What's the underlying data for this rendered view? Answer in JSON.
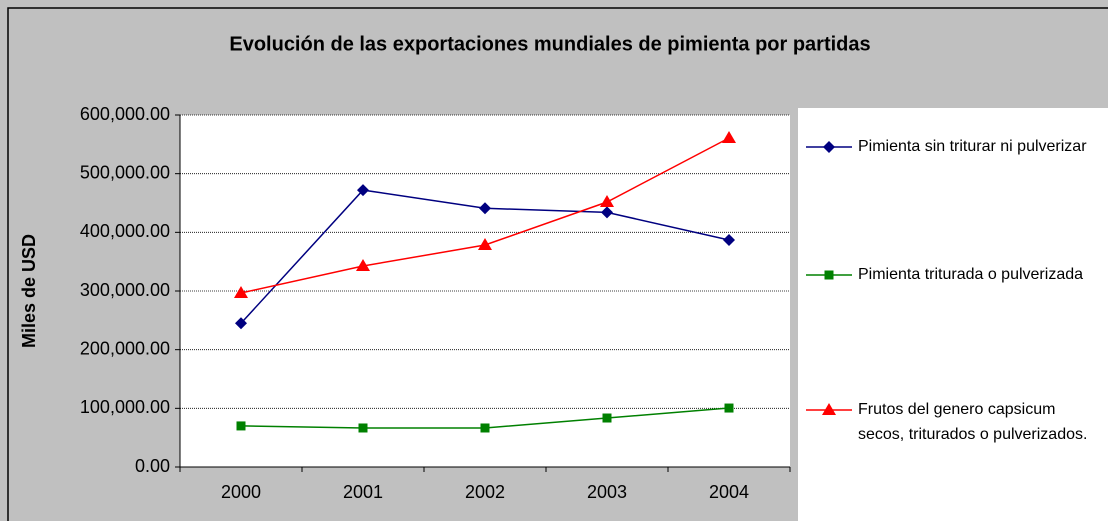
{
  "chart_data": {
    "type": "line",
    "title": "Evolución de las exportaciones mundiales de pimienta por partidas",
    "y_label": "Miles de USD",
    "categories": [
      "2000",
      "2001",
      "2002",
      "2003",
      "2004"
    ],
    "series": [
      {
        "name": "Pimienta sin triturar ni pulverizar",
        "color": "#000080",
        "marker": "diamond",
        "values": [
          245000,
          472000,
          441000,
          434000,
          387000
        ]
      },
      {
        "name": "Pimienta triturada o pulverizada",
        "color": "#008000",
        "marker": "square",
        "values": [
          70000,
          66500,
          66500,
          83500,
          100500
        ]
      },
      {
        "name": "Frutos del genero capsicum secos, triturados o pulverizados.",
        "color": "#ff0000",
        "marker": "triangle",
        "values": [
          296600,
          342600,
          378400,
          451700,
          560800
        ]
      }
    ],
    "ylim": [
      0,
      600000
    ],
    "yticks": [
      {
        "value": 0,
        "label": "0.00"
      },
      {
        "value": 100000,
        "label": "100,000.00"
      },
      {
        "value": 200000,
        "label": "200,000.00"
      },
      {
        "value": 300000,
        "label": "300,000.00"
      },
      {
        "value": 400000,
        "label": "400,000.00"
      },
      {
        "value": 500000,
        "label": "500,000.00"
      },
      {
        "value": 600000,
        "label": "600,000.00"
      }
    ],
    "grid": true
  }
}
